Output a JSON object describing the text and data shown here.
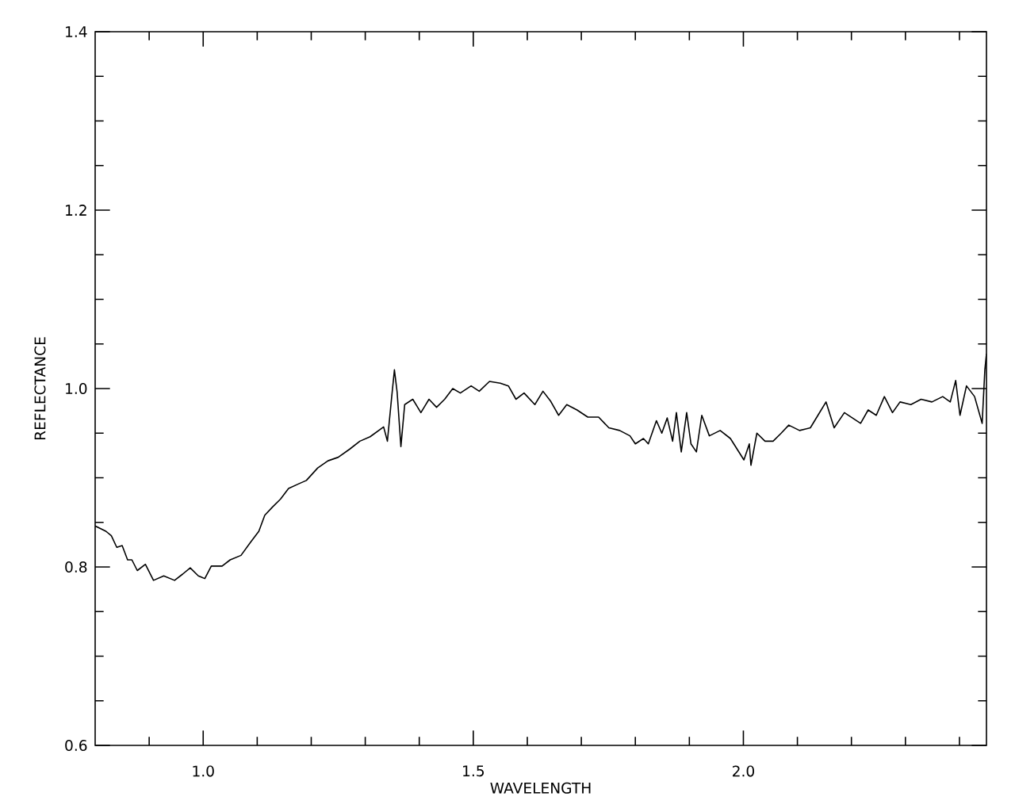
{
  "chart_data": {
    "type": "line",
    "xlabel": "WAVELENGTH",
    "ylabel": "REFLECTANCE",
    "xlim": [
      0.8,
      2.45
    ],
    "ylim": [
      0.6,
      1.4
    ],
    "xticks": [
      {
        "value": 0.9,
        "label": null
      },
      {
        "value": 1.0,
        "label": "1.0"
      },
      {
        "value": 1.1,
        "label": null
      },
      {
        "value": 1.2,
        "label": null
      },
      {
        "value": 1.3,
        "label": null
      },
      {
        "value": 1.4,
        "label": null
      },
      {
        "value": 1.5,
        "label": "1.5"
      },
      {
        "value": 1.6,
        "label": null
      },
      {
        "value": 1.7,
        "label": null
      },
      {
        "value": 1.8,
        "label": null
      },
      {
        "value": 1.9,
        "label": null
      },
      {
        "value": 2.0,
        "label": "2.0"
      },
      {
        "value": 2.1,
        "label": null
      },
      {
        "value": 2.2,
        "label": null
      },
      {
        "value": 2.3,
        "label": null
      },
      {
        "value": 2.4,
        "label": null
      }
    ],
    "yticks": [
      {
        "value": 0.6,
        "label": "0.6"
      },
      {
        "value": 0.65,
        "label": null
      },
      {
        "value": 0.7,
        "label": null
      },
      {
        "value": 0.75,
        "label": null
      },
      {
        "value": 0.8,
        "label": "0.8"
      },
      {
        "value": 0.85,
        "label": null
      },
      {
        "value": 0.9,
        "label": null
      },
      {
        "value": 0.95,
        "label": null
      },
      {
        "value": 1.0,
        "label": "1.0"
      },
      {
        "value": 1.05,
        "label": null
      },
      {
        "value": 1.1,
        "label": null
      },
      {
        "value": 1.15,
        "label": null
      },
      {
        "value": 1.2,
        "label": "1.2"
      },
      {
        "value": 1.25,
        "label": null
      },
      {
        "value": 1.3,
        "label": null
      },
      {
        "value": 1.35,
        "label": null
      },
      {
        "value": 1.4,
        "label": "1.4"
      }
    ],
    "marker": "none",
    "line_style": "solid",
    "series": [
      {
        "color": "#000000",
        "x": [
          0.8,
          0.82,
          0.83,
          0.84,
          0.85,
          0.86,
          0.868,
          0.878,
          0.893,
          0.908,
          0.927,
          0.947,
          0.962,
          0.976,
          0.991,
          1.003,
          1.015,
          1.035,
          1.05,
          1.07,
          1.088,
          1.103,
          1.114,
          1.128,
          1.143,
          1.158,
          1.176,
          1.191,
          1.212,
          1.231,
          1.25,
          1.271,
          1.29,
          1.309,
          1.334,
          1.341,
          1.349,
          1.354,
          1.359,
          1.366,
          1.373,
          1.388,
          1.403,
          1.418,
          1.432,
          1.447,
          1.462,
          1.476,
          1.496,
          1.511,
          1.53,
          1.55,
          1.565,
          1.579,
          1.594,
          1.614,
          1.629,
          1.643,
          1.658,
          1.673,
          1.692,
          1.712,
          1.732,
          1.751,
          1.771,
          1.79,
          1.8,
          1.815,
          1.824,
          1.839,
          1.849,
          1.859,
          1.869,
          1.876,
          1.885,
          1.895,
          1.903,
          1.913,
          1.923,
          1.937,
          1.957,
          1.976,
          2.001,
          2.011,
          2.014,
          2.025,
          2.04,
          2.055,
          2.07,
          2.084,
          2.104,
          2.124,
          2.138,
          2.153,
          2.168,
          2.187,
          2.202,
          2.217,
          2.231,
          2.246,
          2.261,
          2.276,
          2.29,
          2.31,
          2.329,
          2.349,
          2.369,
          2.383,
          2.393,
          2.401,
          2.413,
          2.428,
          2.442,
          2.447,
          2.45
        ],
        "values": [
          0.846,
          0.84,
          0.835,
          0.822,
          0.824,
          0.808,
          0.808,
          0.796,
          0.803,
          0.785,
          0.79,
          0.785,
          0.792,
          0.799,
          0.79,
          0.787,
          0.801,
          0.801,
          0.808,
          0.813,
          0.828,
          0.84,
          0.858,
          0.867,
          0.876,
          0.888,
          0.893,
          0.897,
          0.911,
          0.919,
          0.923,
          0.932,
          0.941,
          0.946,
          0.957,
          0.941,
          0.991,
          1.021,
          0.996,
          0.935,
          0.982,
          0.988,
          0.973,
          0.988,
          0.979,
          0.988,
          1.0,
          0.995,
          1.003,
          0.997,
          1.008,
          1.006,
          1.003,
          0.988,
          0.995,
          0.982,
          0.997,
          0.986,
          0.97,
          0.982,
          0.976,
          0.968,
          0.968,
          0.956,
          0.953,
          0.947,
          0.938,
          0.944,
          0.938,
          0.964,
          0.95,
          0.967,
          0.941,
          0.973,
          0.929,
          0.973,
          0.938,
          0.929,
          0.97,
          0.947,
          0.953,
          0.944,
          0.92,
          0.938,
          0.914,
          0.95,
          0.941,
          0.941,
          0.95,
          0.959,
          0.953,
          0.956,
          0.97,
          0.985,
          0.956,
          0.973,
          0.967,
          0.961,
          0.976,
          0.97,
          0.991,
          0.973,
          0.985,
          0.982,
          0.988,
          0.985,
          0.991,
          0.985,
          1.009,
          0.97,
          1.003,
          0.991,
          0.961,
          1.021,
          1.039
        ]
      }
    ]
  }
}
